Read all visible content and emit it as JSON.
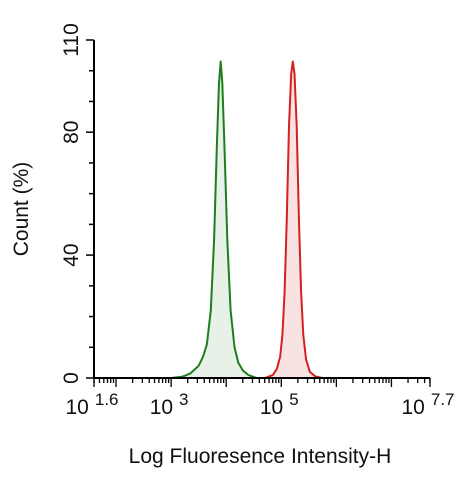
{
  "chart_data": {
    "type": "area",
    "title": "",
    "xlabel": "Log Fluoresence Intensity-H",
    "ylabel": "Count  (%)",
    "x_scale": "log10",
    "xlim": [
      1.6,
      7.7
    ],
    "ylim": [
      0,
      110
    ],
    "grid": false,
    "legend": "none",
    "x_tick_labels": [
      {
        "base": "10",
        "exp": "1.6",
        "log10": 1.6
      },
      {
        "base": "10",
        "exp": "3",
        "log10": 3
      },
      {
        "base": "10",
        "exp": "5",
        "log10": 5
      },
      {
        "base": "10",
        "exp": "7.7",
        "log10": 7.7
      }
    ],
    "y_ticks": [
      0,
      40,
      80,
      110
    ],
    "series": [
      {
        "color": "#1e7d1e",
        "fill": "#e7f1e7",
        "points": [
          [
            3.0,
            0
          ],
          [
            3.2,
            0.4
          ],
          [
            3.35,
            1.5
          ],
          [
            3.5,
            4
          ],
          [
            3.58,
            7
          ],
          [
            3.65,
            11
          ],
          [
            3.72,
            22
          ],
          [
            3.78,
            45
          ],
          [
            3.83,
            75
          ],
          [
            3.87,
            96
          ],
          [
            3.9,
            103
          ],
          [
            3.93,
            96
          ],
          [
            3.97,
            75
          ],
          [
            4.02,
            45
          ],
          [
            4.08,
            22
          ],
          [
            4.15,
            10
          ],
          [
            4.22,
            5
          ],
          [
            4.3,
            2.5
          ],
          [
            4.4,
            1
          ],
          [
            4.55,
            0
          ]
        ]
      },
      {
        "color": "#d42020",
        "fill": "#f9e2e2",
        "points": [
          [
            4.7,
            0
          ],
          [
            4.85,
            1
          ],
          [
            4.92,
            3
          ],
          [
            4.98,
            7
          ],
          [
            5.02,
            14
          ],
          [
            5.06,
            28
          ],
          [
            5.1,
            52
          ],
          [
            5.14,
            82
          ],
          [
            5.18,
            99
          ],
          [
            5.21,
            103
          ],
          [
            5.24,
            99
          ],
          [
            5.28,
            82
          ],
          [
            5.32,
            52
          ],
          [
            5.36,
            28
          ],
          [
            5.4,
            14
          ],
          [
            5.45,
            6
          ],
          [
            5.52,
            2
          ],
          [
            5.62,
            0.5
          ],
          [
            5.75,
            0
          ]
        ]
      }
    ]
  }
}
